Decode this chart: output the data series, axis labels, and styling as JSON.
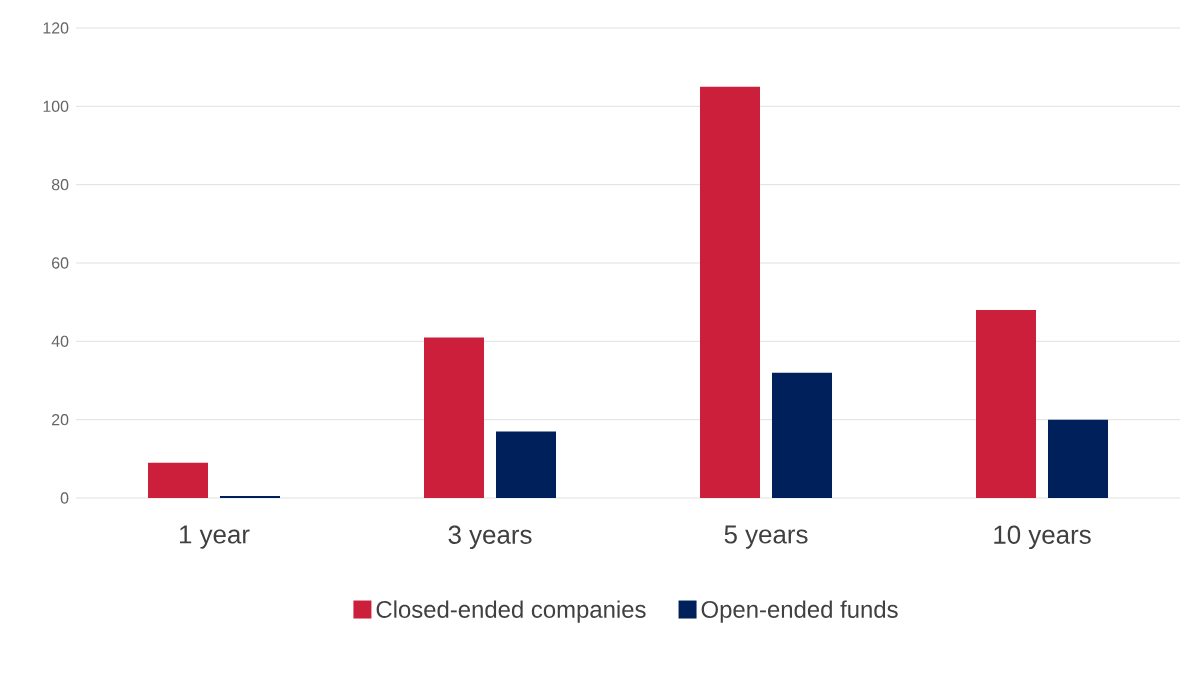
{
  "chart_data": {
    "type": "bar",
    "categories": [
      "1 year",
      "3 years",
      "5 years",
      "10 years"
    ],
    "series": [
      {
        "name": "Closed-ended companies",
        "color": "#cc1f3b",
        "values": [
          9,
          41,
          105,
          48
        ]
      },
      {
        "name": "Open-ended funds",
        "color": "#00205b",
        "values": [
          0.5,
          17,
          32,
          20
        ]
      }
    ],
    "ylim": [
      0,
      120
    ],
    "yticks": [
      0,
      20,
      40,
      60,
      80,
      100,
      120
    ],
    "grid": "y",
    "legend": "bottom"
  }
}
